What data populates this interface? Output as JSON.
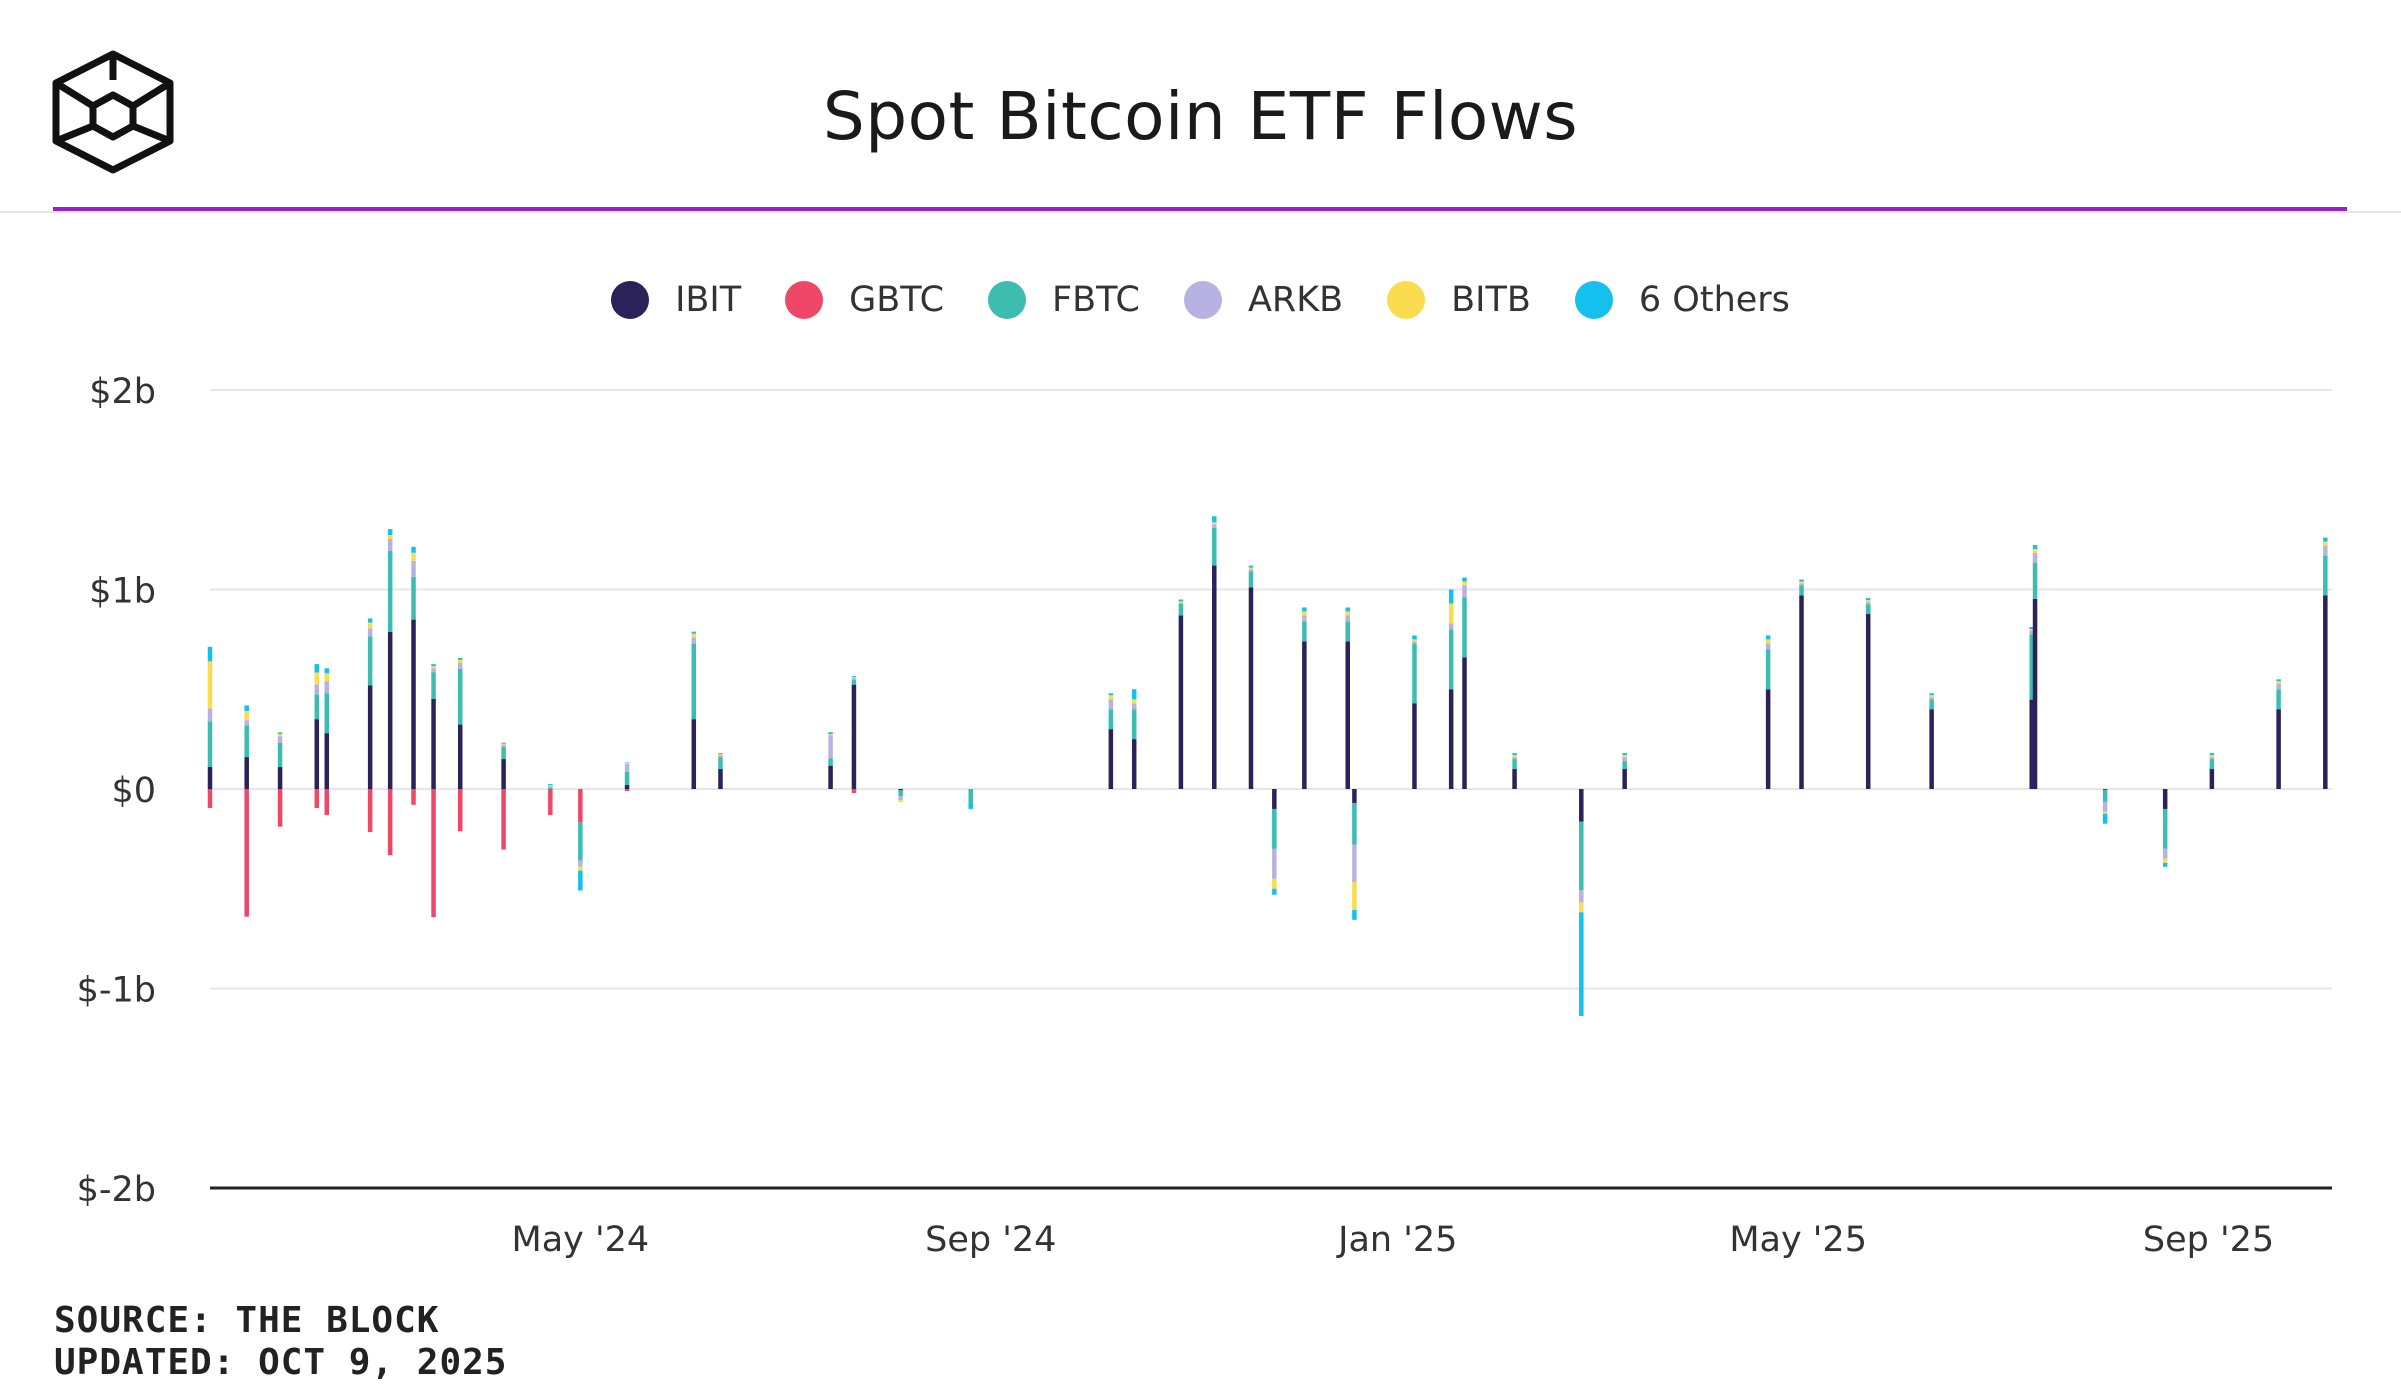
{
  "header": {
    "title": "Spot Bitcoin ETF Flows"
  },
  "footer": {
    "source": "SOURCE: THE BLOCK",
    "updated": "UPDATED: OCT 9, 2025"
  },
  "colors": {
    "IBIT": "#2a2258",
    "GBTC": "#ef4768",
    "FBTC": "#3dbdb0",
    "ARKB": "#b8b2e3",
    "BITB": "#fbdc4f",
    "Others": "#14c1ec",
    "accent": "#9b1fcf"
  },
  "chart_data": {
    "type": "bar",
    "stacked": true,
    "title": "Spot Bitcoin ETF Flows",
    "xlabel": "",
    "ylabel": "",
    "ylim": [
      -2000000000,
      2000000000
    ],
    "y_ticks": [
      {
        "value": 2000000000,
        "label": "$2b"
      },
      {
        "value": 1000000000,
        "label": "$1b"
      },
      {
        "value": 0,
        "label": "$0"
      },
      {
        "value": -1000000000,
        "label": "$-1b"
      },
      {
        "value": -2000000000,
        "label": "$-2b"
      }
    ],
    "x_ticks": [
      {
        "value": "2024-05-01",
        "label": "May '24"
      },
      {
        "value": "2024-09-01",
        "label": "Sep '24"
      },
      {
        "value": "2025-01-01",
        "label": "Jan '25"
      },
      {
        "value": "2025-05-01",
        "label": "May '25"
      },
      {
        "value": "2025-09-01",
        "label": "Sep '25"
      }
    ],
    "x_range": [
      "2024-01-11",
      "2025-10-08"
    ],
    "grid": true,
    "legend_position": "top-center",
    "series": [
      {
        "name": "IBIT",
        "key": "IBIT"
      },
      {
        "name": "GBTC",
        "key": "GBTC"
      },
      {
        "name": "FBTC",
        "key": "FBTC"
      },
      {
        "name": "ARKB",
        "key": "ARKB"
      },
      {
        "name": "BITB",
        "key": "BITB"
      },
      {
        "name": "6 Others",
        "key": "Others"
      }
    ],
    "flow_unit": "$ millions (approximate, read from figure)",
    "flows": [
      [
        "2024-01-11",
        111,
        -95,
        227,
        65,
        237,
        73
      ],
      [
        "2024-01-22",
        160,
        -640,
        158,
        27,
        46,
        28
      ],
      [
        "2024-02-01",
        110,
        -189,
        121,
        34,
        11,
        8
      ],
      [
        "2024-02-12",
        350,
        -95,
        124,
        51,
        59,
        42
      ],
      [
        "2024-02-15",
        280,
        -130,
        200,
        60,
        40,
        25
      ],
      [
        "2024-02-28",
        520,
        -216,
        245,
        40,
        30,
        20
      ],
      [
        "2024-03-05",
        788,
        -332,
        405,
        60,
        20,
        30
      ],
      [
        "2024-03-12",
        849,
        -79,
        215,
        80,
        40,
        30
      ],
      [
        "2024-03-18",
        451,
        -642,
        135,
        20,
        10,
        10
      ],
      [
        "2024-03-26",
        323,
        -212,
        279,
        30,
        15,
        10
      ],
      [
        "2024-04-08",
        150,
        -303,
        62,
        10,
        5,
        5
      ],
      [
        "2024-04-22",
        0,
        -130,
        5,
        10,
        5,
        5
      ],
      [
        "2024-05-01",
        0,
        -167,
        -191,
        -31,
        -20,
        -100
      ],
      [
        "2024-05-15",
        20,
        -10,
        67,
        38,
        5,
        3
      ],
      [
        "2024-06-04",
        350,
        0,
        379,
        30,
        20,
        10
      ],
      [
        "2024-06-12",
        100,
        0,
        60,
        10,
        5,
        5
      ],
      [
        "2024-07-15",
        117,
        0,
        36,
        117,
        5,
        10
      ],
      [
        "2024-07-22",
        523,
        -20,
        23,
        10,
        5,
        5
      ],
      [
        "2024-08-05",
        -5,
        0,
        -30,
        -20,
        -10,
        0
      ],
      [
        "2024-08-26",
        0,
        0,
        -70,
        0,
        0,
        -30
      ],
      [
        "2024-09-16",
        0,
        0,
        0,
        0,
        0,
        0
      ],
      [
        "2024-10-07",
        300,
        0,
        100,
        50,
        20,
        10
      ],
      [
        "2024-10-14",
        250,
        0,
        150,
        30,
        20,
        50
      ],
      [
        "2024-10-28",
        870,
        0,
        60,
        0,
        10,
        10
      ],
      [
        "2024-11-07",
        1120,
        0,
        190,
        17,
        10,
        30
      ],
      [
        "2024-11-18",
        1010,
        0,
        80,
        10,
        10,
        10
      ],
      [
        "2024-11-25",
        -100,
        0,
        -200,
        -150,
        -50,
        -30
      ],
      [
        "2024-12-04",
        740,
        0,
        100,
        30,
        20,
        20
      ],
      [
        "2024-12-17",
        740,
        0,
        100,
        30,
        20,
        20
      ],
      [
        "2024-12-19",
        -70,
        0,
        -208,
        -188,
        -140,
        -50
      ],
      [
        "2025-01-06",
        430,
        0,
        300,
        10,
        10,
        20
      ],
      [
        "2025-01-17",
        500,
        0,
        300,
        30,
        100,
        70
      ],
      [
        "2025-01-21",
        660,
        0,
        300,
        60,
        20,
        20
      ],
      [
        "2025-02-05",
        100,
        0,
        50,
        10,
        10,
        10
      ],
      [
        "2025-02-25",
        -164,
        0,
        -344,
        -60,
        -50,
        -520
      ],
      [
        "2025-03-10",
        100,
        0,
        40,
        20,
        10,
        10
      ],
      [
        "2025-04-22",
        500,
        0,
        200,
        30,
        20,
        20
      ],
      [
        "2025-05-02",
        970,
        0,
        50,
        10,
        10,
        10
      ],
      [
        "2025-05-22",
        877,
        0,
        50,
        10,
        10,
        10
      ],
      [
        "2025-06-10",
        400,
        0,
        50,
        10,
        10,
        10
      ],
      [
        "2025-07-10",
        448,
        0,
        324,
        20,
        10,
        10
      ],
      [
        "2025-07-11",
        953,
        0,
        180,
        50,
        20,
        20
      ],
      [
        "2025-08-01",
        -4,
        0,
        -60,
        -50,
        -10,
        -50
      ],
      [
        "2025-08-19",
        -100,
        0,
        -200,
        -50,
        -20,
        -20
      ],
      [
        "2025-09-02",
        100,
        0,
        50,
        10,
        10,
        10
      ],
      [
        "2025-09-22",
        400,
        0,
        100,
        30,
        10,
        10
      ],
      [
        "2025-10-06",
        970,
        0,
        200,
        50,
        20,
        20
      ]
    ]
  }
}
